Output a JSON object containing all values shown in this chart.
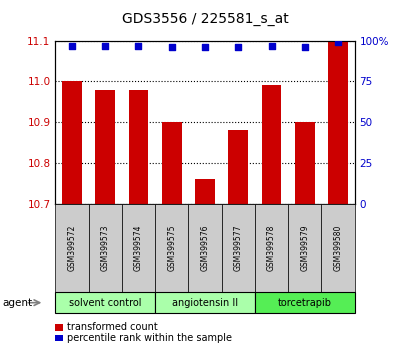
{
  "title": "GDS3556 / 225581_s_at",
  "samples": [
    "GSM399572",
    "GSM399573",
    "GSM399574",
    "GSM399575",
    "GSM399576",
    "GSM399577",
    "GSM399578",
    "GSM399579",
    "GSM399580"
  ],
  "bar_values": [
    11.0,
    10.98,
    10.98,
    10.9,
    10.76,
    10.88,
    10.99,
    10.9,
    11.1
  ],
  "percentile_values": [
    97,
    97,
    97,
    96,
    96,
    96,
    97,
    96,
    99
  ],
  "ylim_left": [
    10.7,
    11.1
  ],
  "ylim_right": [
    0,
    100
  ],
  "yticks_left": [
    10.7,
    10.8,
    10.9,
    11.0,
    11.1
  ],
  "yticks_right": [
    0,
    25,
    50,
    75,
    100
  ],
  "bar_color": "#cc0000",
  "dot_color": "#0000cc",
  "groups": [
    {
      "label": "solvent control",
      "indices": [
        0,
        1,
        2
      ],
      "color": "#aaffaa"
    },
    {
      "label": "angiotensin II",
      "indices": [
        3,
        4,
        5
      ],
      "color": "#aaffaa"
    },
    {
      "label": "torcetrapib",
      "indices": [
        6,
        7,
        8
      ],
      "color": "#55ee55"
    }
  ],
  "legend_bar_label": "transformed count",
  "legend_dot_label": "percentile rank within the sample",
  "agent_label": "agent",
  "left_axis_color": "#cc0000",
  "right_axis_color": "#0000cc",
  "background_color": "#ffffff",
  "sample_box_color": "#cccccc"
}
